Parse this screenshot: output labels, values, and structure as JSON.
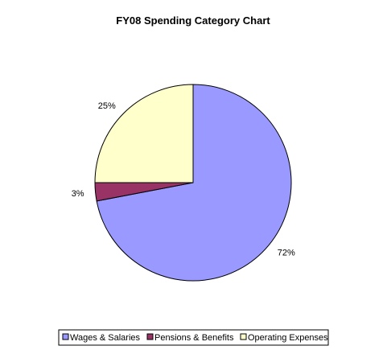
{
  "chart_data": {
    "type": "pie",
    "title": "FY08 Spending Category Chart",
    "slices": [
      {
        "name": "Wages & Salaries",
        "value": 72,
        "label": "72%",
        "color": "#9999FF"
      },
      {
        "name": "Pensions & Benefits",
        "value": 3,
        "label": "3%",
        "color": "#993366"
      },
      {
        "name": "Operating Expenses",
        "value": 25,
        "label": "25%",
        "color": "#FFFFCC"
      }
    ],
    "legend": {
      "placement": "bottom",
      "entries": [
        "Wages & Salaries",
        "Pensions & Benefits",
        "Operating Expenses"
      ]
    }
  }
}
